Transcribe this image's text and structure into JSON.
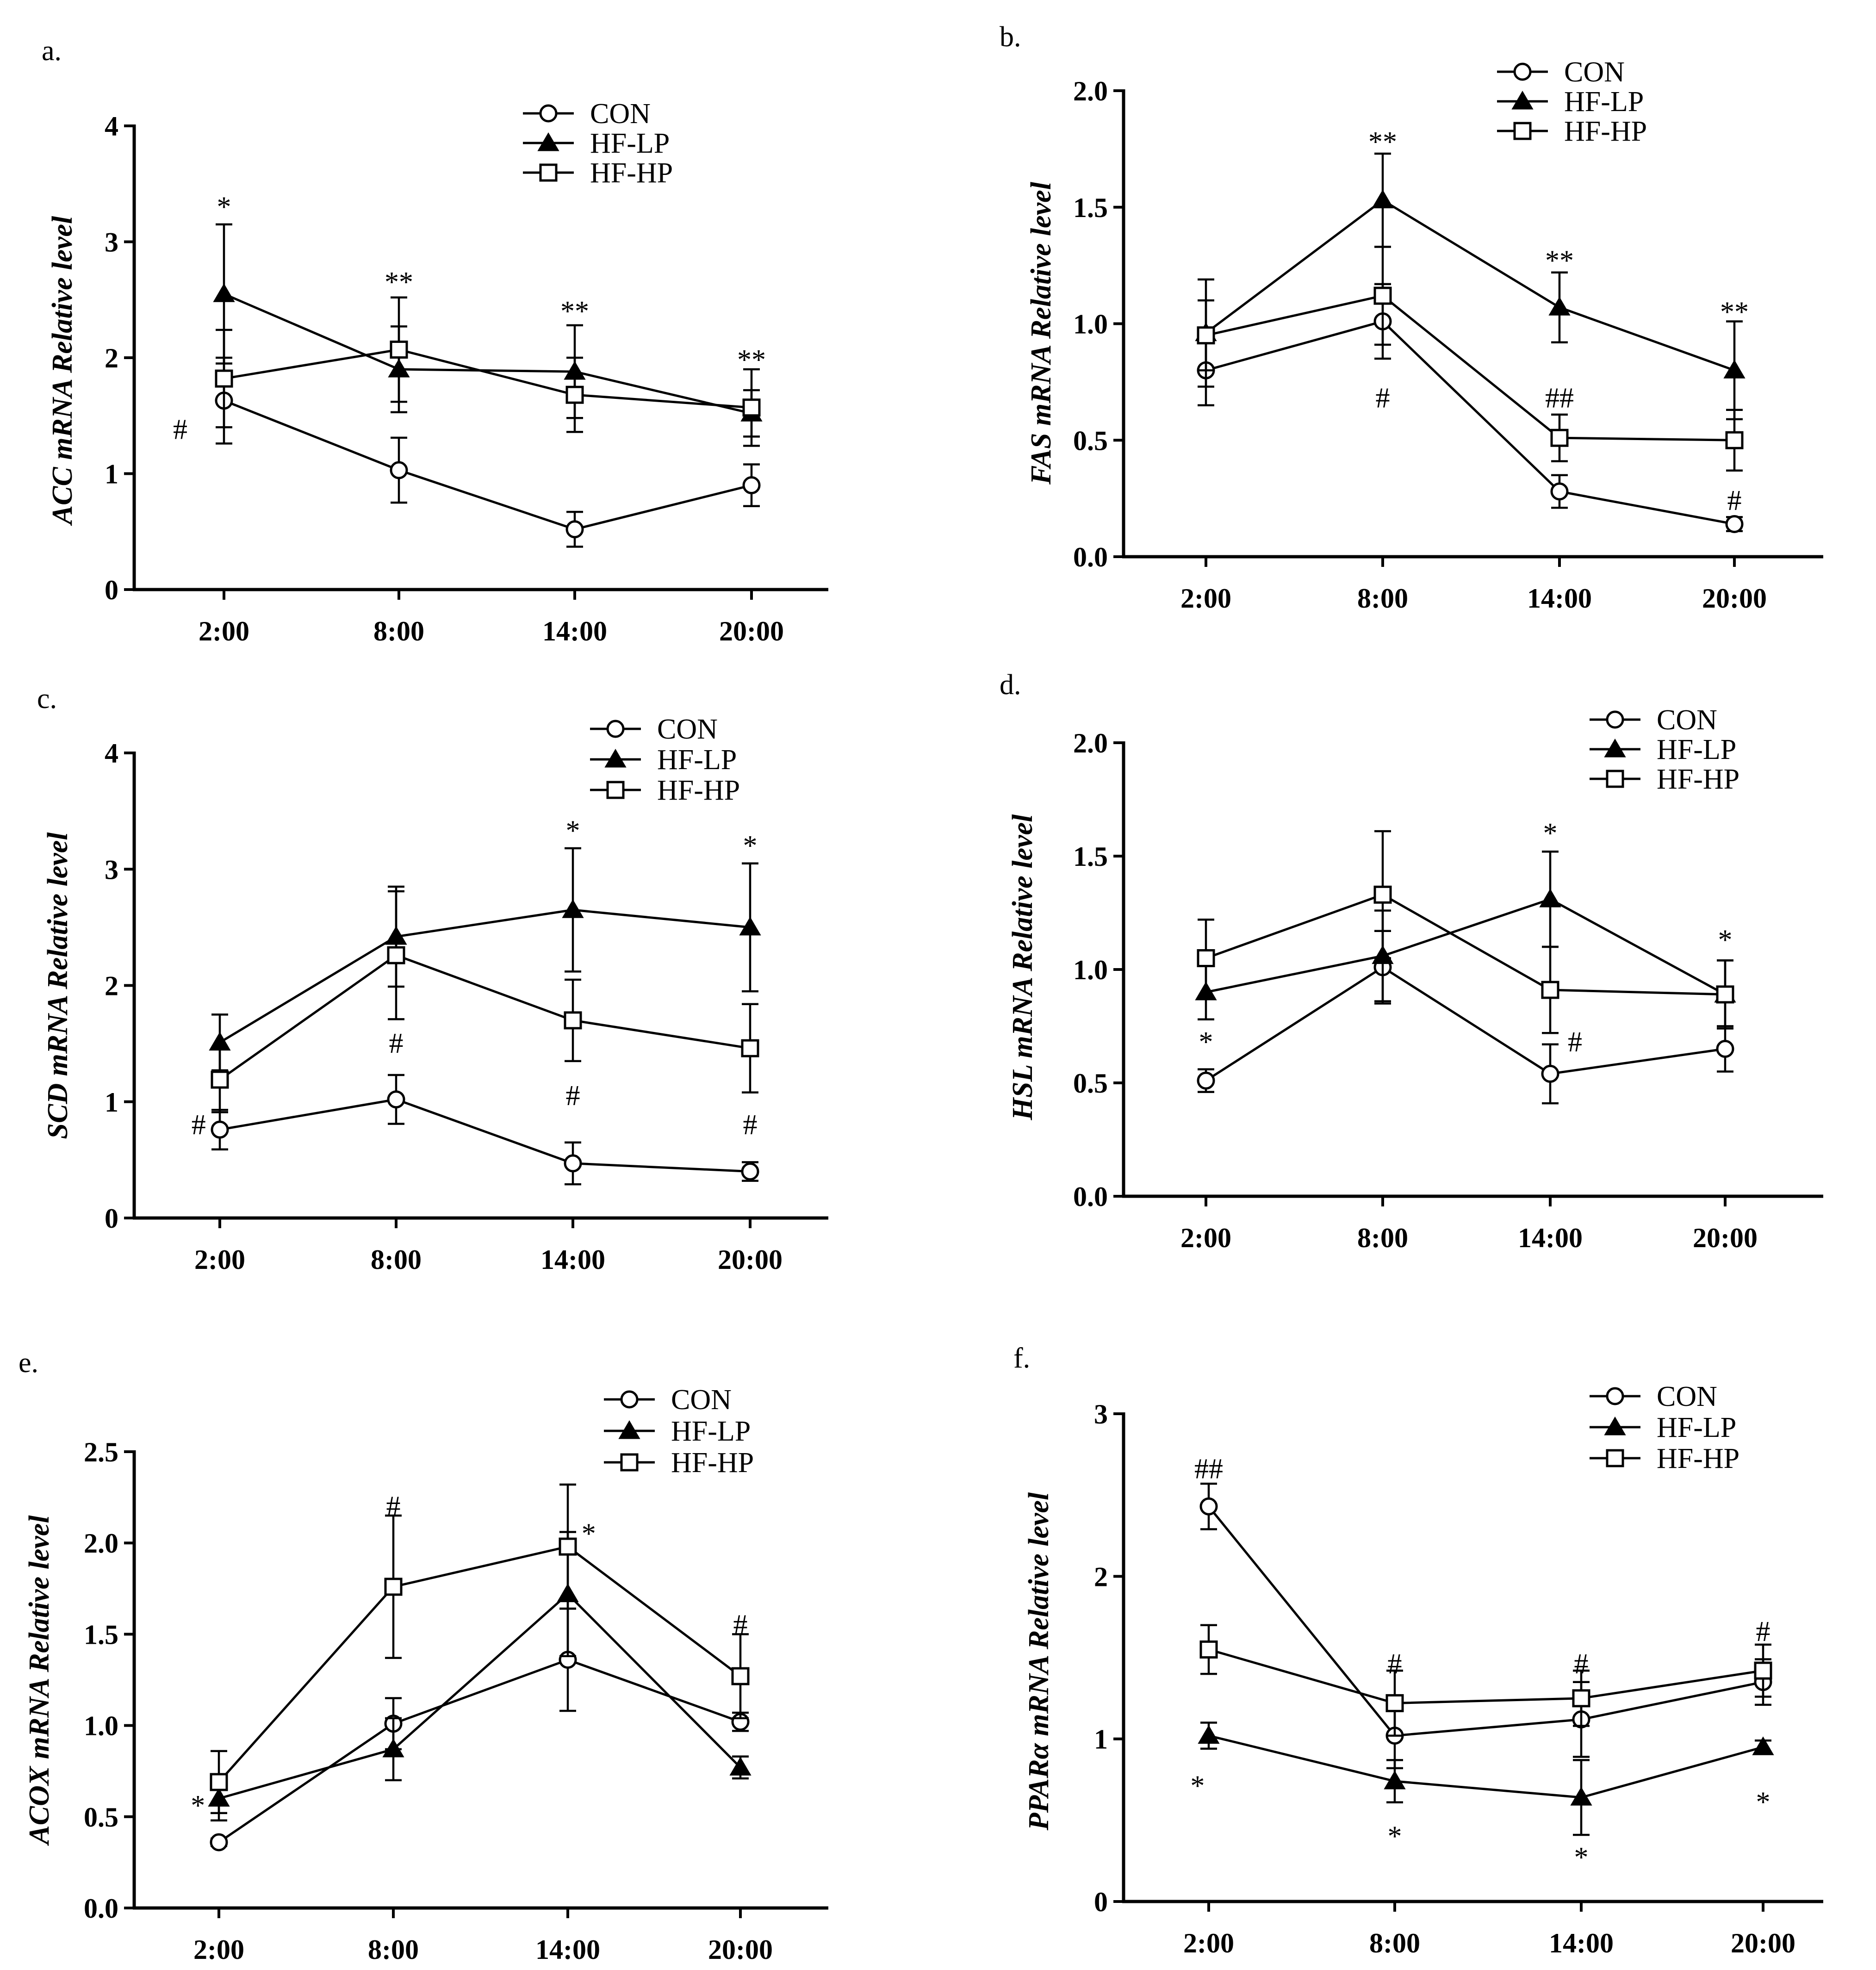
{
  "legend_labels": [
    "CON",
    "HF-LP",
    "HF-HP"
  ],
  "chart_data": [
    {
      "type": "line",
      "panel_label": "a.",
      "ylabel": "ACC mRNA Relative level",
      "categories": [
        "2:00",
        "8:00",
        "14:00",
        "20:00"
      ],
      "ylim": [
        0,
        4
      ],
      "yticks": [
        "0",
        "1",
        "2",
        "3",
        "4"
      ],
      "series": [
        {
          "name": "CON",
          "marker": "circle",
          "values": [
            1.63,
            1.03,
            0.52,
            0.9
          ],
          "err": [
            0.37,
            0.28,
            0.15,
            0.18
          ]
        },
        {
          "name": "HF-LP",
          "marker": "triangle",
          "values": [
            2.55,
            1.9,
            1.88,
            1.52
          ],
          "err": [
            0.6,
            0.37,
            0.4,
            0.2
          ]
        },
        {
          "name": "HF-HP",
          "marker": "square",
          "values": [
            1.82,
            2.07,
            1.68,
            1.57
          ],
          "err": [
            0.42,
            0.45,
            0.32,
            0.33
          ]
        }
      ],
      "annotations": [
        {
          "text": "*",
          "x": "2:00",
          "y": 3.3
        },
        {
          "text": "#",
          "x": "2:00",
          "y": 1.38,
          "dx": -0.25
        },
        {
          "text": "**",
          "x": "8:00",
          "y": 2.65
        },
        {
          "text": "**",
          "x": "14:00",
          "y": 2.4
        },
        {
          "text": "**",
          "x": "20:00",
          "y": 1.98
        }
      ]
    },
    {
      "type": "line",
      "panel_label": "b.",
      "ylabel": "FAS mRNA Relative level",
      "categories": [
        "2:00",
        "8:00",
        "14:00",
        "20:00"
      ],
      "ylim": [
        0,
        2
      ],
      "yticks": [
        "0.0",
        "0.5",
        "1.0",
        "1.5",
        "2.0"
      ],
      "series": [
        {
          "name": "CON",
          "marker": "circle",
          "values": [
            0.8,
            1.01,
            0.28,
            0.14
          ],
          "err": [
            0.15,
            0.16,
            0.07,
            0.03
          ]
        },
        {
          "name": "HF-LP",
          "marker": "triangle",
          "values": [
            0.96,
            1.53,
            1.07,
            0.8
          ],
          "err": [
            0.23,
            0.2,
            0.15,
            0.21
          ]
        },
        {
          "name": "HF-HP",
          "marker": "square",
          "values": [
            0.95,
            1.12,
            0.51,
            0.5
          ],
          "err": [
            0.15,
            0.21,
            0.1,
            0.13
          ]
        }
      ],
      "annotations": [
        {
          "text": "**",
          "x": "8:00",
          "y": 1.78
        },
        {
          "text": "#",
          "x": "8:00",
          "y": 0.68
        },
        {
          "text": "**",
          "x": "14:00",
          "y": 1.27
        },
        {
          "text": "##",
          "x": "14:00",
          "y": 0.68
        },
        {
          "text": "**",
          "x": "20:00",
          "y": 1.05
        },
        {
          "text": "#",
          "x": "20:00",
          "y": 0.24
        }
      ]
    },
    {
      "type": "line",
      "panel_label": "c.",
      "ylabel": "SCD mRNA Relative level",
      "categories": [
        "2:00",
        "8:00",
        "14:00",
        "20:00"
      ],
      "ylim": [
        0,
        4
      ],
      "yticks": [
        "0",
        "1",
        "2",
        "3",
        "4"
      ],
      "series": [
        {
          "name": "CON",
          "marker": "circle",
          "values": [
            0.76,
            1.02,
            0.47,
            0.4
          ],
          "err": [
            0.17,
            0.21,
            0.18,
            0.08
          ]
        },
        {
          "name": "HF-LP",
          "marker": "triangle",
          "values": [
            1.51,
            2.42,
            2.65,
            2.5
          ],
          "err": [
            0.24,
            0.43,
            0.53,
            0.55
          ]
        },
        {
          "name": "HF-HP",
          "marker": "square",
          "values": [
            1.19,
            2.26,
            1.7,
            1.46
          ],
          "err": [
            0.28,
            0.55,
            0.35,
            0.38
          ]
        }
      ],
      "annotations": [
        {
          "text": "#",
          "x": "2:00",
          "y": 0.8,
          "dx": -0.12
        },
        {
          "text": "#",
          "x": "8:00",
          "y": 1.5
        },
        {
          "text": "*",
          "x": "14:00",
          "y": 3.33
        },
        {
          "text": "#",
          "x": "14:00",
          "y": 1.05
        },
        {
          "text": "*",
          "x": "20:00",
          "y": 3.2
        },
        {
          "text": "#",
          "x": "20:00",
          "y": 0.8
        }
      ]
    },
    {
      "type": "line",
      "panel_label": "d.",
      "ylabel": "HSL mRNA Relative level",
      "categories": [
        "2:00",
        "8:00",
        "14:00",
        "20:00"
      ],
      "ylim": [
        0,
        2
      ],
      "yticks": [
        "0.0",
        "0.5",
        "1.0",
        "1.5",
        "2.0"
      ],
      "series": [
        {
          "name": "CON",
          "marker": "circle",
          "values": [
            0.51,
            1.01,
            0.54,
            0.65
          ],
          "err": [
            0.05,
            0.16,
            0.13,
            0.1
          ]
        },
        {
          "name": "HF-LP",
          "marker": "triangle",
          "values": [
            0.9,
            1.06,
            1.31,
            0.89
          ],
          "err": [
            0.12,
            0.2,
            0.21,
            0.15
          ]
        },
        {
          "name": "HF-HP",
          "marker": "square",
          "values": [
            1.05,
            1.33,
            0.91,
            0.89
          ],
          "err": [
            0.17,
            0.28,
            0.19,
            0.15
          ]
        }
      ],
      "annotations": [
        {
          "text": "*",
          "x": "2:00",
          "y": 0.68
        },
        {
          "text": "*",
          "x": "14:00",
          "y": 1.6
        },
        {
          "text": "#",
          "x": "14:00",
          "y": 0.68,
          "dx": 0.14
        },
        {
          "text": "*",
          "x": "20:00",
          "y": 1.13
        }
      ]
    },
    {
      "type": "line",
      "panel_label": "e.",
      "ylabel": "ACOX mRNA Relative level",
      "categories": [
        "2:00",
        "8:00",
        "14:00",
        "20:00"
      ],
      "ylim": [
        0,
        2.5
      ],
      "yticks": [
        "0.0",
        "0.5",
        "1.0",
        "1.5",
        "2.0",
        "2.5"
      ],
      "series": [
        {
          "name": "CON",
          "marker": "circle",
          "values": [
            0.36,
            1.01,
            1.36,
            1.02
          ],
          "err": [
            0.02,
            0.14,
            0.28,
            0.05
          ]
        },
        {
          "name": "HF-LP",
          "marker": "triangle",
          "values": [
            0.6,
            0.87,
            1.72,
            0.77
          ],
          "err": [
            0.12,
            0.17,
            0.34,
            0.06
          ]
        },
        {
          "name": "HF-HP",
          "marker": "square",
          "values": [
            0.69,
            1.76,
            1.98,
            1.27
          ],
          "err": [
            0.17,
            0.39,
            0.34,
            0.23
          ]
        }
      ],
      "annotations": [
        {
          "text": "*",
          "x": "2:00",
          "y": 0.56,
          "dx": -0.12
        },
        {
          "text": "#",
          "x": "8:00",
          "y": 2.2
        },
        {
          "text": "*",
          "x": "14:00",
          "y": 2.05,
          "dx": 0.12
        },
        {
          "text": "#",
          "x": "20:00",
          "y": 1.55
        }
      ]
    },
    {
      "type": "line",
      "panel_label": "f.",
      "ylabel": "PPARα mRNA Relative level",
      "categories": [
        "2:00",
        "8:00",
        "14:00",
        "20:00"
      ],
      "ylim": [
        0,
        3
      ],
      "yticks": [
        "0",
        "1",
        "2",
        "3"
      ],
      "series": [
        {
          "name": "CON",
          "marker": "circle",
          "values": [
            2.43,
            1.02,
            1.12,
            1.35
          ],
          "err": [
            0.14,
            0.2,
            0.23,
            0.14
          ]
        },
        {
          "name": "HF-LP",
          "marker": "triangle",
          "values": [
            1.02,
            0.74,
            0.64,
            0.95
          ],
          "err": [
            0.08,
            0.13,
            0.23,
            0.04
          ]
        },
        {
          "name": "HF-HP",
          "marker": "square",
          "values": [
            1.55,
            1.22,
            1.25,
            1.42
          ],
          "err": [
            0.15,
            0.2,
            0.17,
            0.16
          ]
        }
      ],
      "annotations": [
        {
          "text": "##",
          "x": "2:00",
          "y": 2.66
        },
        {
          "text": "*",
          "x": "2:00",
          "y": 0.71,
          "dx": -0.06
        },
        {
          "text": "#",
          "x": "8:00",
          "y": 1.46
        },
        {
          "text": "*",
          "x": "8:00",
          "y": 0.4
        },
        {
          "text": "#",
          "x": "14:00",
          "y": 1.46
        },
        {
          "text": "*",
          "x": "14:00",
          "y": 0.27
        },
        {
          "text": "#",
          "x": "20:00",
          "y": 1.66
        },
        {
          "text": "*",
          "x": "20:00",
          "y": 0.61
        }
      ]
    }
  ]
}
